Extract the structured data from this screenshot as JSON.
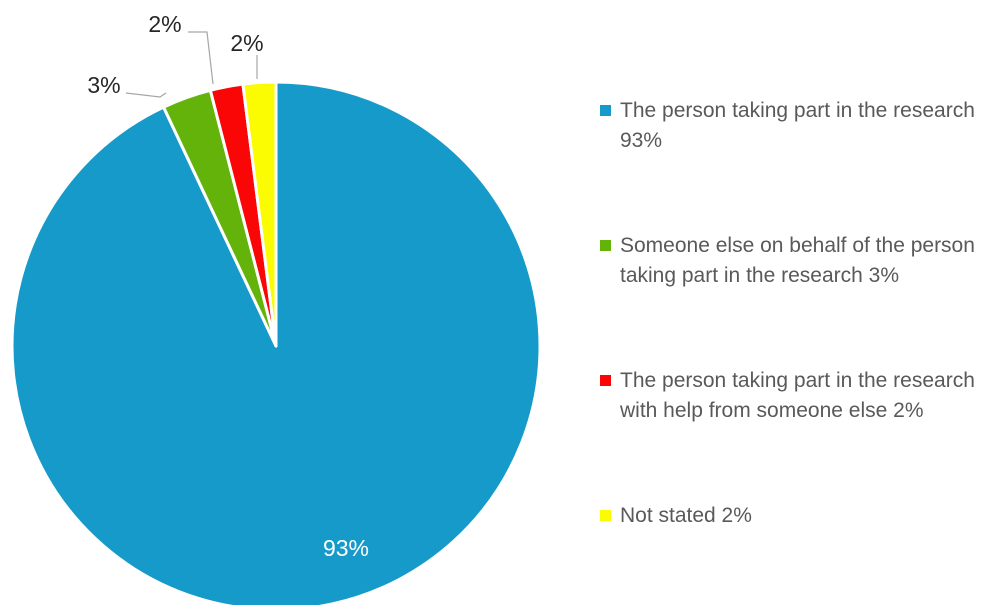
{
  "chart_data": {
    "type": "pie",
    "title": "",
    "slices": [
      {
        "label": "The person taking part in the research",
        "value": 93,
        "data_label": "93%",
        "legend": "The person taking part in the research 93%",
        "color": "#169ac9"
      },
      {
        "label": "Someone else on behalf of the person taking part in the research",
        "value": 3,
        "data_label": "3%",
        "legend": "Someone else on behalf of the person taking part in the research 3%",
        "color": "#63b30b"
      },
      {
        "label": "The person taking part in the research with help from someone else",
        "value": 2,
        "data_label": "2%",
        "legend": "The person taking part in the research with help from someone else 2%",
        "color": "#fa0606"
      },
      {
        "label": "Not stated",
        "value": 2,
        "data_label": "2%",
        "legend": "Not stated 2%",
        "color": "#fbfb02"
      }
    ],
    "legend_position": "right",
    "label_color_inside": "#ffffff",
    "label_color_outside": "#262626",
    "leader_line_color": "#a6a6a6"
  }
}
